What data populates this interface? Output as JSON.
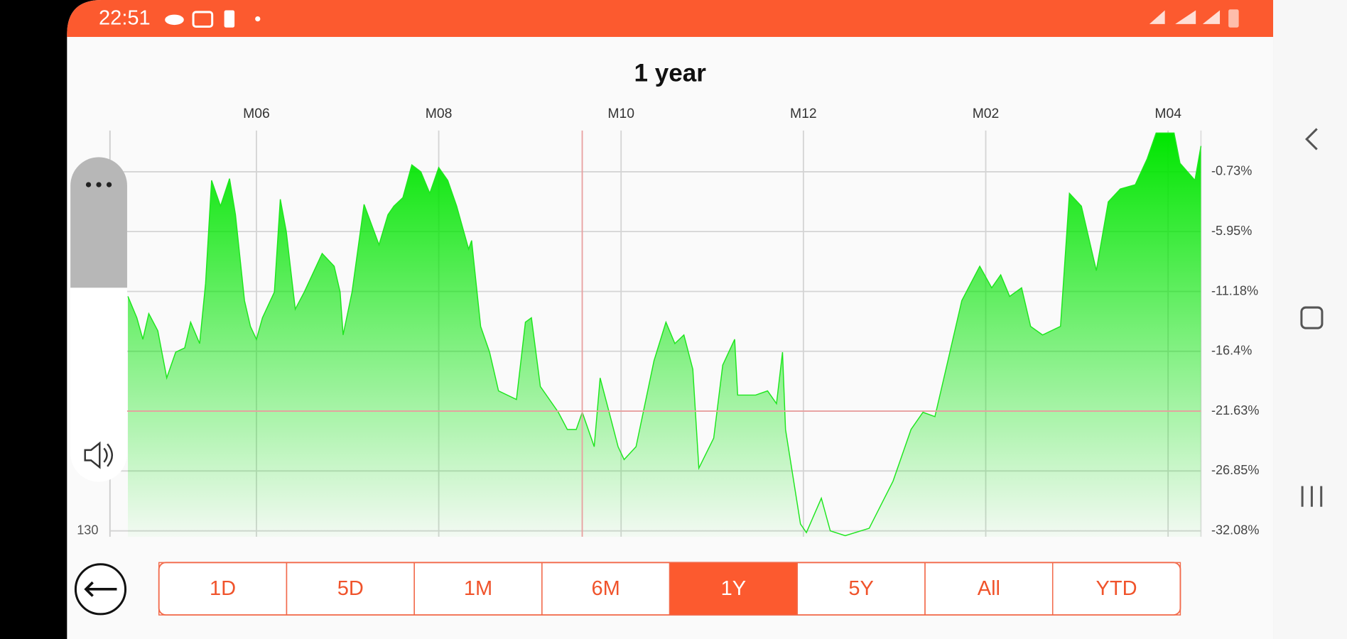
{
  "status_bar": {
    "time": "22:51"
  },
  "chart_data": {
    "type": "area",
    "title": "1 year",
    "x": [
      6,
      9,
      11,
      13,
      16,
      19,
      22,
      25,
      27,
      30,
      32,
      34,
      37,
      40,
      42,
      45,
      47,
      49,
      51,
      55,
      57,
      59,
      62,
      65,
      71,
      75,
      77,
      78,
      81,
      85,
      90,
      93,
      95,
      98,
      101,
      104,
      107,
      110,
      113,
      116,
      120,
      121,
      124,
      127,
      130,
      136,
      139,
      141,
      144,
      150,
      153,
      156,
      158,
      162,
      164,
      167,
      170,
      172,
      176,
      182,
      186,
      189,
      192,
      195,
      197,
      202,
      205,
      209,
      210,
      216,
      220,
      223,
      225,
      226,
      231,
      233,
      238,
      241,
      246,
      254,
      262,
      268,
      272,
      276,
      279,
      285,
      291,
      295,
      298,
      301,
      305,
      308,
      312,
      318,
      321,
      325,
      330,
      334,
      338,
      343,
      347,
      350,
      356,
      358,
      363,
      365
    ],
    "series": [
      {
        "color": "#1ee61e",
        "values": [
          -11.61,
          -13.48,
          -15.36,
          -13.11,
          -14.61,
          -18.73,
          -16.48,
          -16.11,
          -13.86,
          -15.73,
          -10.48,
          -1.48,
          -3.73,
          -1.33,
          -4.48,
          -11.98,
          -14.23,
          -15.36,
          -13.48,
          -11.23,
          -3.13,
          -5.98,
          -12.73,
          -11.23,
          -7.86,
          -8.98,
          -11.23,
          -14.98,
          -11.23,
          -3.58,
          -7.11,
          -4.48,
          -3.73,
          -2.98,
          -0.13,
          -0.73,
          -2.61,
          -0.36,
          -1.48,
          -3.73,
          -7.48,
          -6.73,
          -14.23,
          -16.48,
          -19.86,
          -20.61,
          -13.86,
          -13.48,
          -19.48,
          -21.73,
          -23.23,
          -23.23,
          -21.73,
          -24.73,
          -18.73,
          -21.73,
          -24.73,
          -25.86,
          -24.73,
          -17.23,
          -13.86,
          -15.73,
          -14.98,
          -17.98,
          -26.61,
          -23.98,
          -17.61,
          -15.36,
          -20.23,
          -20.23,
          -19.86,
          -20.98,
          -16.48,
          -23.23,
          -31.48,
          -32.23,
          -29.23,
          -32.08,
          -32.5,
          -31.86,
          -27.73,
          -23.23,
          -21.73,
          -22.11,
          -18.73,
          -11.98,
          -8.98,
          -10.86,
          -9.73,
          -11.61,
          -10.86,
          -14.23,
          -14.98,
          -14.23,
          -2.61,
          -3.73,
          -9.36,
          -3.36,
          -2.23,
          -1.86,
          0.4,
          2.65,
          2.65,
          0.02,
          -1.48,
          1.52
        ]
      }
    ],
    "xlim": [
      0,
      365
    ],
    "xticks": [
      {
        "value": 49,
        "label": "M06"
      },
      {
        "value": 110,
        "label": "M08"
      },
      {
        "value": 171,
        "label": "M10"
      },
      {
        "value": 232,
        "label": "M12"
      },
      {
        "value": 293,
        "label": "M02"
      },
      {
        "value": 354,
        "label": "M04"
      }
    ],
    "ylim": [
      -32.6,
      2.87
    ],
    "yticks": [
      {
        "value": -0.73,
        "label": "-0.73%"
      },
      {
        "value": -5.95,
        "label": "-5.95%"
      },
      {
        "value": -11.18,
        "label": "-11.18%"
      },
      {
        "value": -16.4,
        "label": "-16.4%"
      },
      {
        "value": -21.63,
        "label": "-21.63%"
      },
      {
        "value": -26.85,
        "label": "-26.85%"
      },
      {
        "value": -32.08,
        "label": "-32.08%"
      }
    ],
    "grid": true,
    "left_label": "130",
    "crosshair": {
      "x": 158,
      "y": -21.63
    }
  },
  "range_buttons": {
    "labels": [
      "1D",
      "5D",
      "1M",
      "6M",
      "1Y",
      "5Y",
      "All",
      "YTD"
    ],
    "selected": 4
  }
}
